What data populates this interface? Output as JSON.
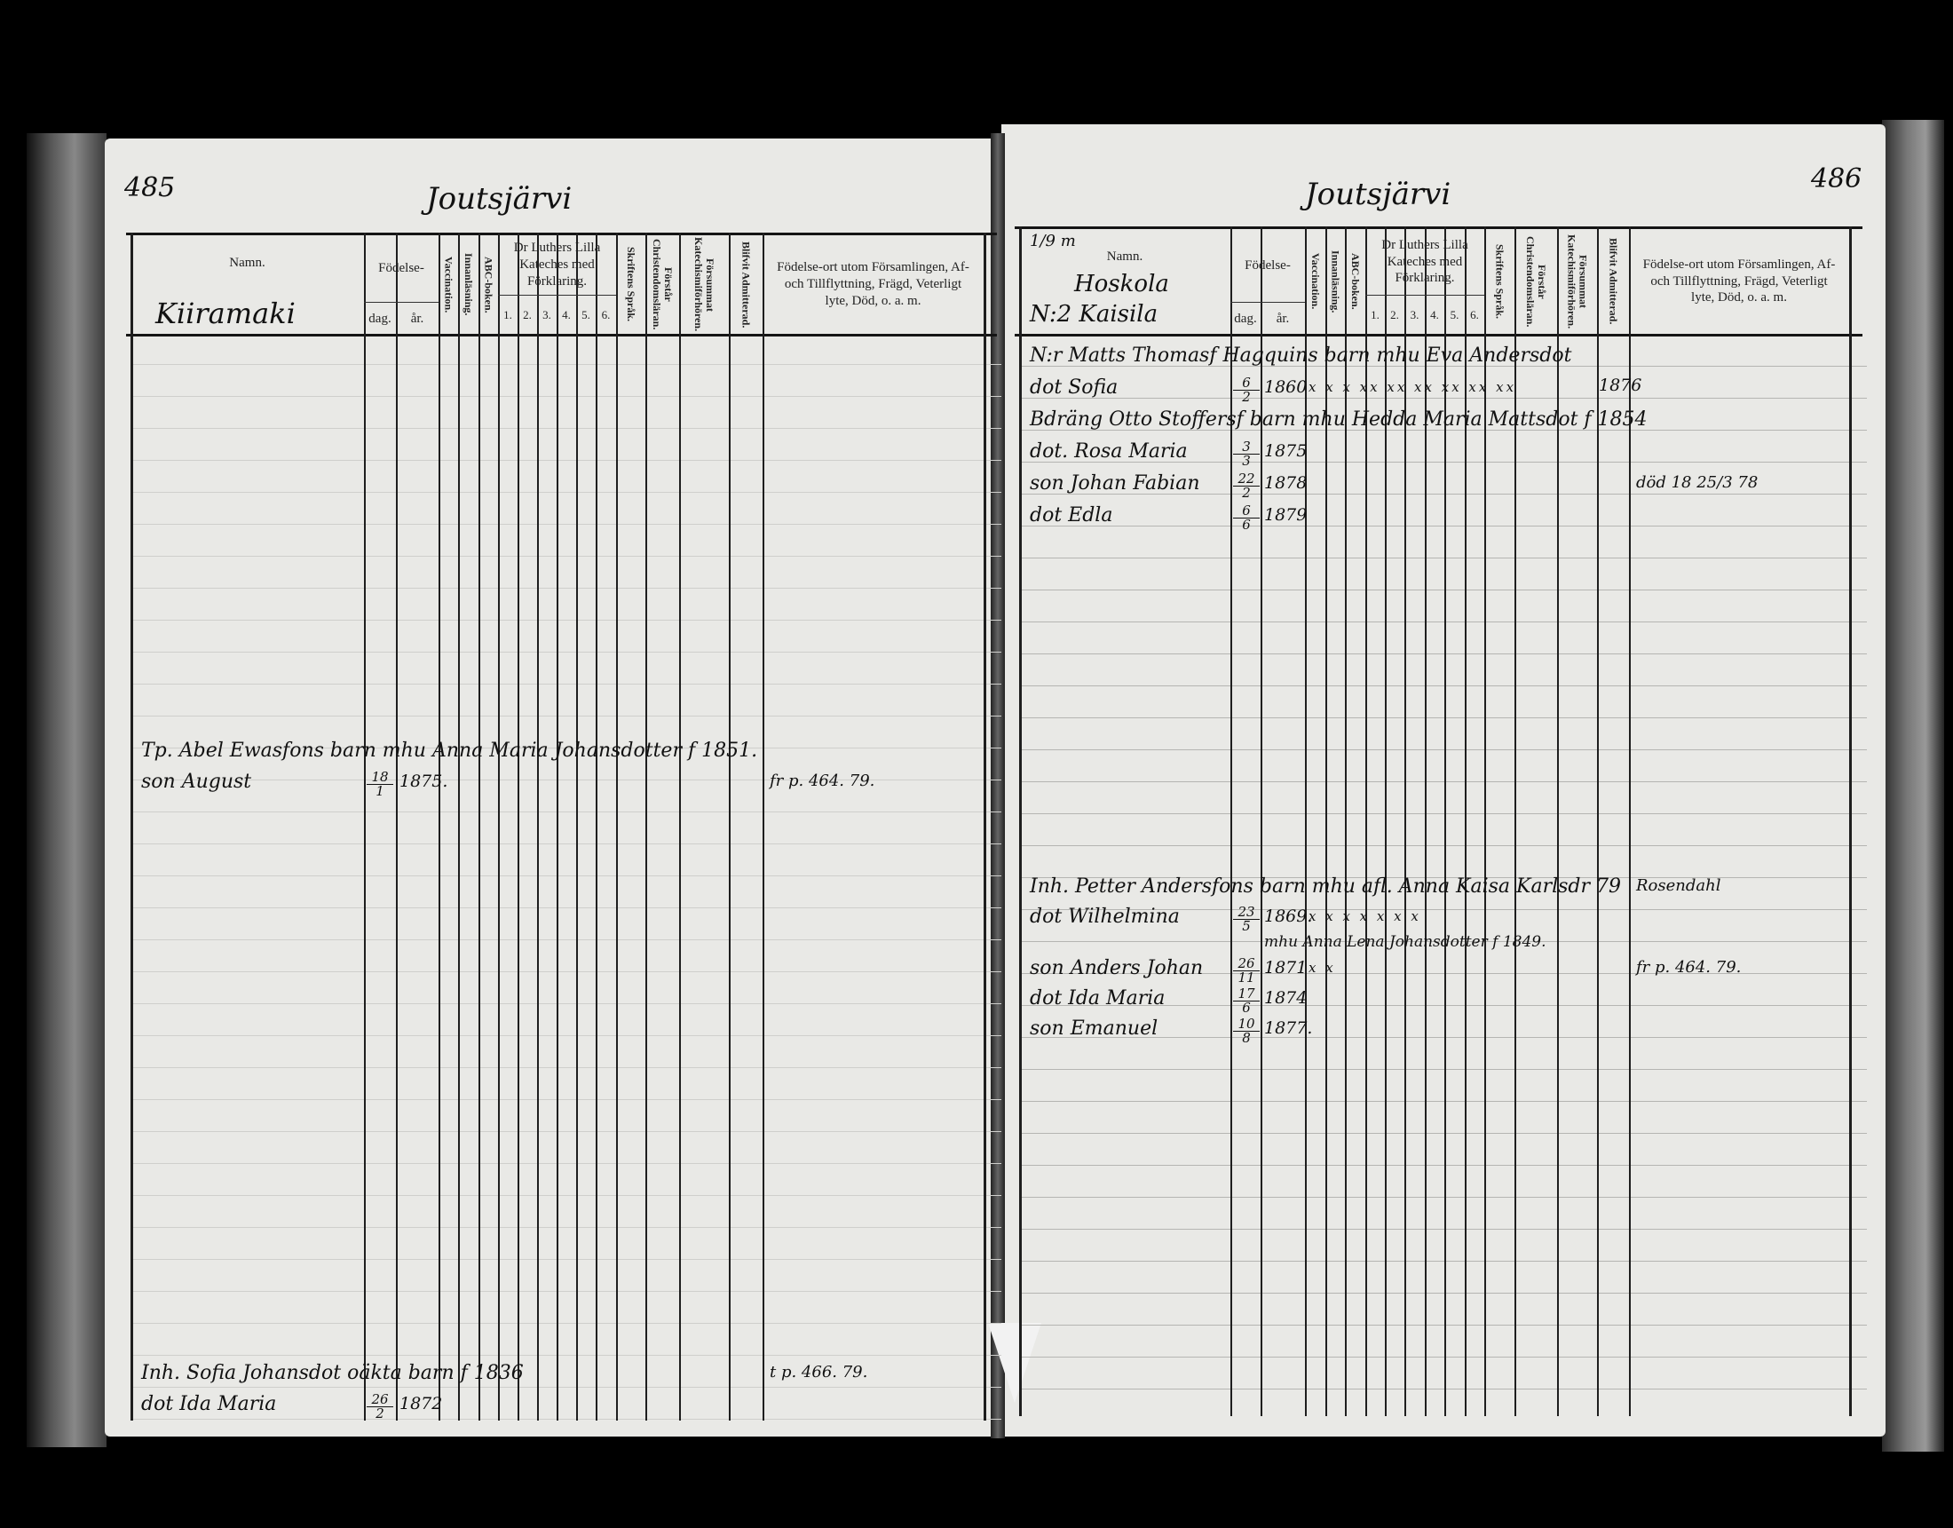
{
  "header": {
    "namn": "Namn.",
    "fodelse": "Födelse-",
    "dag": "dag.",
    "ar": "år.",
    "vaccination": "Vaccination.",
    "innanlasning": "Innanläsning.",
    "abc": "ABC-boken.",
    "luther": "Dr Luthers Lilla Kateches med Förklaring.",
    "catechism_parts": [
      "1.",
      "2.",
      "3.",
      "4.",
      "5.",
      "6."
    ],
    "skrift": "Skriftens Språk.",
    "forstar": "Förstår Christendomsläran.",
    "forsummat": "Försummat Katechismiförhören.",
    "blifvit": "Blifvit Admitterad.",
    "fodelseort": "Födelse-ort utom Församlingen, Af- och Tillflyttning, Frägd, Veterligt lyte, Död, o. a. m."
  },
  "left_page": {
    "page_number": "485",
    "village": "Joutsjärvi",
    "farm": "Kiiramaki",
    "entries": [
      {
        "text": "Tp. Abel Ewasfons barn mhu Anna Maria Johansdotter f 1851."
      },
      {
        "text": "son August",
        "day": "18",
        "month": "1",
        "year": "1875.",
        "remark": "fr p. 464. 79."
      },
      {
        "text": "Inh. Sofia Johansdot oäkta barn f 1836",
        "remark": "t p. 466. 79."
      },
      {
        "text": "dot Ida Maria",
        "day": "26",
        "month": "2",
        "year": "1872"
      }
    ]
  },
  "right_page": {
    "page_number": "486",
    "village": "Joutsjärvi",
    "share": "1/9 m",
    "farm": "Hoskola",
    "farm_number": "N:2 Kaisila",
    "entries": [
      {
        "text": "N:r Matts Thomasf Hagquins barn mhu Eva Andersdot"
      },
      {
        "text": "dot Sofia",
        "day": "6",
        "month": "2",
        "year": "1860",
        "marks": "x x x xx xx xx xx xx xx",
        "admitted": "1876"
      },
      {
        "text": "Bdräng Otto Stoffersf barn mhu Hedda Maria Mattsdot f 1854"
      },
      {
        "text": "dot. Rosa Maria",
        "day": "3",
        "month": "3",
        "year": "1875"
      },
      {
        "text": "son Johan Fabian",
        "day": "22",
        "month": "2",
        "year": "1878",
        "remark": "död 18 25/3 78"
      },
      {
        "text": "dot Edla",
        "day": "6",
        "month": "6",
        "year": "1879"
      },
      {
        "text": "Inh. Petter Andersfons barn mhu afl. Anna Kaisa Karlsdr 79",
        "remark": "Rosendahl"
      },
      {
        "text": "dot Wilhelmina",
        "day": "23",
        "month": "5",
        "year": "1869.",
        "marks": "x x x x x x x"
      },
      {
        "note": "mhu Anna Lena Johansdotter f 1849."
      },
      {
        "text": "son Anders Johan",
        "day": "26",
        "month": "11",
        "year": "1871",
        "marks": "x x",
        "remark": "fr p. 464. 79."
      },
      {
        "text": "dot Ida Maria",
        "day": "17",
        "month": "6",
        "year": "1874"
      },
      {
        "text": "son Emanuel",
        "day": "10",
        "month": "8",
        "year": "1877."
      }
    ]
  }
}
